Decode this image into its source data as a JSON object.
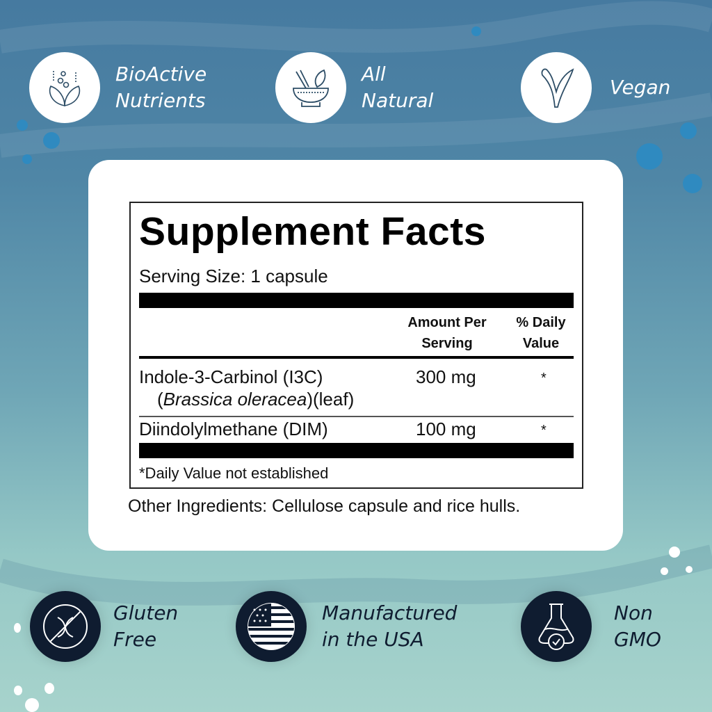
{
  "top_badges": [
    {
      "label": "BioActive\nNutrients",
      "icon": "leaves-bubbles-icon"
    },
    {
      "label": "All\nNatural",
      "icon": "mortar-pestle-leaf-icon"
    },
    {
      "label": "Vegan",
      "icon": "sprout-icon"
    }
  ],
  "bottom_badges": [
    {
      "label": "Gluten\nFree",
      "icon": "no-gluten-dna-icon"
    },
    {
      "label": "Manufactured\nin the USA",
      "icon": "usa-flag-icon"
    },
    {
      "label": "Non\nGMO",
      "icon": "flask-check-icon"
    }
  ],
  "facts": {
    "title": "Supplement Facts",
    "serving_size": "Serving Size: 1 capsule",
    "col_amount": "Amount Per\nServing",
    "col_dv": "% Daily\nValue",
    "rows": [
      {
        "name": "Indole-3-Carbinol (I3C)",
        "source_italic": "Brassica oleracea",
        "source_suffix": "(leaf)",
        "amount": "300 mg",
        "dv": "*"
      },
      {
        "name": "Diindolylmethane (DIM)",
        "amount": "100 mg",
        "dv": "*"
      }
    ],
    "footnote": "*Daily Value not established",
    "other_ingredients": "Other Ingredients: Cellulose capsule and rice hulls."
  },
  "colors": {
    "bg_top": "#467aa0",
    "bg_bottom": "#a7d3cc",
    "icon_dark": "#0f1c30",
    "icon_line": "#2d4d66"
  }
}
